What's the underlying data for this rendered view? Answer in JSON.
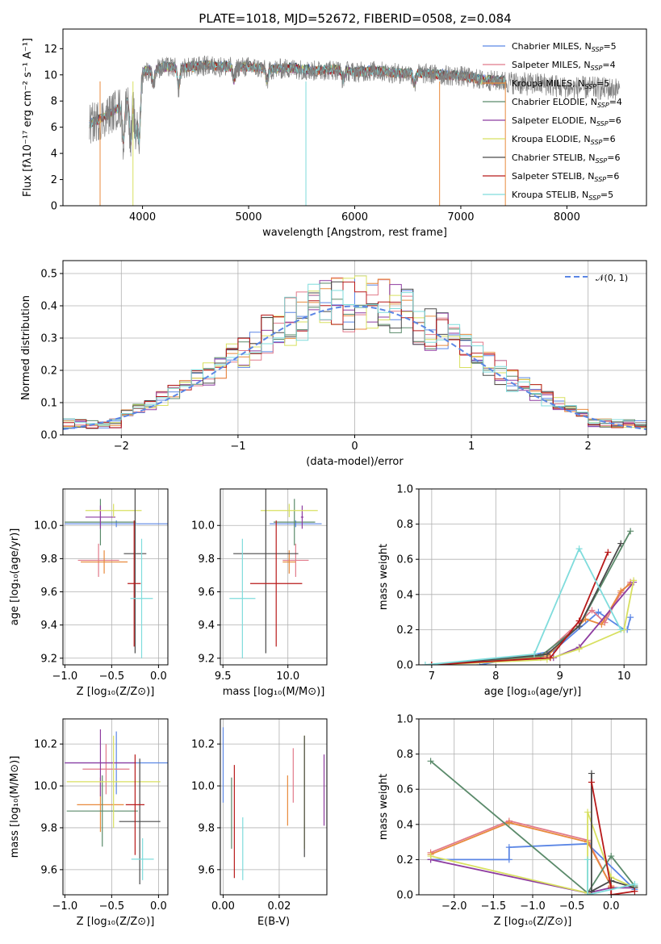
{
  "title": "PLATE=1018, MJD=52672, FIBERID=0508, z=0.084",
  "colors": {
    "Chabrier MILES": "#5b86e5",
    "Salpeter MILES": "#e17a8a",
    "Kroupa MILES": "#e88a3c",
    "Chabrier ELODIE": "#5a8a6a",
    "Salpeter ELODIE": "#8e3ca0",
    "Kroupa ELODIE": "#d8e060",
    "Chabrier STELIB": "#4a4a4a",
    "Salpeter STELIB": "#b81a1a",
    "Kroupa STELIB": "#7fdcdc",
    "data": "#808080",
    "normal": "#5b86e5"
  },
  "chart_data": [
    {
      "type": "line",
      "id": "spectrum",
      "title": "PLATE=1018, MJD=52672, FIBERID=0508, z=0.084",
      "xlabel": "wavelength [Angstrom, rest frame]",
      "ylabel": "Flux [fλ10⁻¹⁷ erg cm⁻² s⁻¹ A⁻¹]",
      "xlim": [
        3250,
        8750
      ],
      "ylim": [
        0,
        13.5
      ],
      "xticks": [
        "4000",
        "5000",
        "6000",
        "7000",
        "8000"
      ],
      "yticks": [
        "0",
        "2",
        "4",
        "6",
        "8",
        "10",
        "12"
      ],
      "legend": [
        {
          "model": "Chabrier MILES",
          "label": "Chabrier MILES, N",
          "nssp": "=5"
        },
        {
          "model": "Salpeter MILES",
          "label": "Salpeter MILES, N",
          "nssp": "=4"
        },
        {
          "model": "Kroupa MILES",
          "label": "Kroupa MILES, N",
          "nssp": "=5"
        },
        {
          "model": "Chabrier ELODIE",
          "label": "Chabrier ELODIE, N",
          "nssp": "=4"
        },
        {
          "model": "Salpeter ELODIE",
          "label": "Salpeter ELODIE, N",
          "nssp": "=6"
        },
        {
          "model": "Kroupa ELODIE",
          "label": "Kroupa ELODIE, N",
          "nssp": "=6"
        },
        {
          "model": "Chabrier STELIB",
          "label": "Chabrier STELIB, N",
          "nssp": "=6"
        },
        {
          "model": "Salpeter STELIB",
          "label": "Salpeter STELIB, N",
          "nssp": "=6"
        },
        {
          "model": "Kroupa STELIB",
          "label": "Kroupa STELIB, N",
          "nssp": "=5"
        }
      ],
      "nssp_sub": "SSP",
      "continuum": [
        [
          3500,
          6.2
        ],
        [
          3650,
          6.8
        ],
        [
          3800,
          7.6
        ],
        [
          3950,
          9.0
        ],
        [
          4000,
          10.2
        ],
        [
          4200,
          10.6
        ],
        [
          4400,
          10.5
        ],
        [
          4600,
          10.7
        ],
        [
          4800,
          10.6
        ],
        [
          5000,
          10.6
        ],
        [
          5200,
          10.4
        ],
        [
          5400,
          10.5
        ],
        [
          5600,
          10.3
        ],
        [
          5800,
          10.4
        ],
        [
          6000,
          10.2
        ],
        [
          6200,
          10.3
        ],
        [
          6400,
          10.1
        ],
        [
          6600,
          10.1
        ],
        [
          6800,
          10.0
        ],
        [
          7000,
          9.9
        ],
        [
          7200,
          9.6
        ],
        [
          7400,
          9.5
        ],
        [
          7600,
          9.3
        ],
        [
          7800,
          9.3
        ],
        [
          8000,
          9.0
        ],
        [
          8200,
          9.0
        ],
        [
          8500,
          8.9
        ]
      ],
      "absorption": [
        [
          3820,
          5.0
        ],
        [
          3889,
          4.8
        ],
        [
          3934,
          5.2
        ],
        [
          3969,
          5.0
        ],
        [
          4102,
          9.3
        ],
        [
          4340,
          9.0
        ],
        [
          4861,
          9.6
        ],
        [
          5175,
          9.6
        ],
        [
          5890,
          9.6
        ],
        [
          6563,
          9.3
        ]
      ]
    },
    {
      "type": "histogram",
      "id": "residuals",
      "xlabel": "(data-model)/error",
      "ylabel": "Normed distribution",
      "xlim": [
        -2.5,
        2.5
      ],
      "ylim": [
        0,
        0.54
      ],
      "xticks": [
        "−2",
        "−1",
        "0",
        "1",
        "2"
      ],
      "yticks": [
        "0.0",
        "0.1",
        "0.2",
        "0.3",
        "0.4",
        "0.5"
      ],
      "legend": "𝒩(0, 1)",
      "bin_width": 0.1,
      "normal_curve": {
        "mean": 0,
        "sigma": 1
      }
    },
    {
      "type": "errorbar",
      "id": "age-vs-Z",
      "xlabel": "Z [log₁₀(Z/Z⊙)]",
      "ylabel": "age  [log₁₀(age/yr)]",
      "xlim": [
        -1.02,
        0.1
      ],
      "ylim": [
        9.16,
        10.22
      ],
      "xticks": [
        "−1.0",
        "−0.5",
        "0.0"
      ],
      "yticks": [
        "9.2",
        "9.4",
        "9.6",
        "9.8",
        "10.0"
      ],
      "points": [
        {
          "model": "Chabrier MILES",
          "x": -0.45,
          "xerr": 0.55,
          "y": 10.01,
          "yerr": 0.02
        },
        {
          "model": "Salpeter MILES",
          "x": -0.64,
          "xerr": 0.22,
          "y": 9.79,
          "yerr": 0.1
        },
        {
          "model": "Kroupa MILES",
          "x": -0.58,
          "xerr": 0.25,
          "y": 9.78,
          "yerr": 0.07
        },
        {
          "model": "Chabrier ELODIE",
          "x": -0.62,
          "xerr": 0.38,
          "y": 10.02,
          "yerr": 0.14
        },
        {
          "model": "Salpeter ELODIE",
          "x": -0.62,
          "xerr": 0.16,
          "y": 10.05,
          "yerr": 0.07
        },
        {
          "model": "Kroupa ELODIE",
          "x": -0.48,
          "xerr": 0.3,
          "y": 10.09,
          "yerr": 0.04
        },
        {
          "model": "Chabrier STELIB",
          "x": -0.25,
          "xerr": 0.12,
          "y": 9.83,
          "yerr": 0.6
        },
        {
          "model": "Salpeter STELIB",
          "x": -0.26,
          "xerr": 0.07,
          "y": 9.65,
          "yerr": 0.38
        },
        {
          "model": "Kroupa STELIB",
          "x": -0.18,
          "xerr": 0.12,
          "y": 9.56,
          "yerr": 0.36
        }
      ]
    },
    {
      "type": "errorbar",
      "id": "age-vs-mass",
      "xlabel": "mass [log₁₀(M/M⊙)]",
      "ylabel": "",
      "xlim": [
        9.48,
        10.3
      ],
      "ylim": [
        9.16,
        10.22
      ],
      "xticks": [
        "9.5",
        "10.0"
      ],
      "yticks": [
        "9.2",
        "9.4",
        "9.6",
        "9.8",
        "10.0"
      ],
      "points": [
        {
          "model": "Chabrier MILES",
          "x": 10.06,
          "xerr": 0.2,
          "y": 10.01,
          "yerr": 0.02
        },
        {
          "model": "Salpeter MILES",
          "x": 10.06,
          "xerr": 0.1,
          "y": 9.79,
          "yerr": 0.1
        },
        {
          "model": "Kroupa MILES",
          "x": 10.01,
          "xerr": 0.05,
          "y": 9.78,
          "yerr": 0.07
        },
        {
          "model": "Chabrier ELODIE",
          "x": 10.05,
          "xerr": 0.16,
          "y": 10.02,
          "yerr": 0.14
        },
        {
          "model": "Salpeter ELODIE",
          "x": 10.11,
          "xerr": 0.01,
          "y": 10.05,
          "yerr": 0.07
        },
        {
          "model": "Kroupa ELODIE",
          "x": 10.01,
          "xerr": 0.22,
          "y": 10.09,
          "yerr": 0.04
        },
        {
          "model": "Chabrier STELIB",
          "x": 9.83,
          "xerr": 0.25,
          "y": 9.83,
          "yerr": 0.6
        },
        {
          "model": "Salpeter STELIB",
          "x": 9.91,
          "xerr": 0.2,
          "y": 9.65,
          "yerr": 0.38
        },
        {
          "model": "Kroupa STELIB",
          "x": 9.65,
          "xerr": 0.1,
          "y": 9.56,
          "yerr": 0.36
        }
      ]
    },
    {
      "type": "line",
      "id": "weight-vs-age",
      "xlabel": "age  [log₁₀(age/yr)]",
      "ylabel": "mass weight",
      "xlim": [
        6.8,
        10.35
      ],
      "ylim": [
        0,
        1.0
      ],
      "xticks": [
        "7",
        "8",
        "9",
        "10"
      ],
      "yticks": [
        "0.0",
        "0.2",
        "0.4",
        "0.6",
        "0.8",
        "1.0"
      ],
      "series": [
        {
          "model": "Chabrier MILES",
          "x": [
            7.75,
            8.9,
            9.6,
            10.0,
            10.05,
            10.1
          ],
          "y": [
            0.0,
            0.08,
            0.3,
            0.2,
            0.2,
            0.27
          ]
        },
        {
          "model": "Salpeter MILES",
          "x": [
            7.0,
            8.7,
            9.5,
            9.7,
            9.95,
            10.1
          ],
          "y": [
            0.0,
            0.04,
            0.31,
            0.24,
            0.41,
            0.47
          ]
        },
        {
          "model": "Kroupa MILES",
          "x": [
            7.0,
            8.8,
            9.4,
            9.65,
            9.95,
            10.1
          ],
          "y": [
            0.0,
            0.05,
            0.26,
            0.23,
            0.42,
            0.46
          ]
        },
        {
          "model": "Chabrier ELODIE",
          "x": [
            7.0,
            8.7,
            9.3,
            10.1
          ],
          "y": [
            0.0,
            0.05,
            0.22,
            0.76
          ]
        },
        {
          "model": "Salpeter ELODIE",
          "x": [
            7.0,
            8.9,
            9.3,
            10.15
          ],
          "y": [
            0.0,
            0.04,
            0.1,
            0.47
          ]
        },
        {
          "model": "Kroupa ELODIE",
          "x": [
            7.0,
            8.8,
            9.3,
            10.0,
            10.15
          ],
          "y": [
            0.0,
            0.03,
            0.09,
            0.2,
            0.48
          ]
        },
        {
          "model": "Chabrier STELIB",
          "x": [
            7.0,
            8.8,
            9.3,
            9.95
          ],
          "y": [
            0.0,
            0.06,
            0.22,
            0.69
          ]
        },
        {
          "model": "Salpeter STELIB",
          "x": [
            7.0,
            8.85,
            9.3,
            9.75
          ],
          "y": [
            0.0,
            0.04,
            0.25,
            0.64
          ]
        },
        {
          "model": "Kroupa STELIB",
          "x": [
            6.9,
            8.6,
            9.3,
            9.95
          ],
          "y": [
            0.0,
            0.06,
            0.66,
            0.2
          ]
        }
      ]
    },
    {
      "type": "errorbar",
      "id": "mass-vs-Z",
      "xlabel": "Z [log₁₀(Z/Z⊙)]",
      "ylabel": "mass [log₁₀(M/M⊙)]",
      "xlim": [
        -1.02,
        0.1
      ],
      "ylim": [
        9.48,
        10.32
      ],
      "xticks": [
        "−1.0",
        "−0.5",
        "0.0"
      ],
      "yticks": [
        "9.6",
        "9.8",
        "10.0",
        "10.2"
      ],
      "points": [
        {
          "model": "Chabrier MILES",
          "x": -0.45,
          "xerr": 0.55,
          "y": 10.11,
          "yerr": 0.15
        },
        {
          "model": "Salpeter MILES",
          "x": -0.56,
          "xerr": 0.25,
          "y": 10.08,
          "yerr": 0.12
        },
        {
          "model": "Kroupa MILES",
          "x": -0.62,
          "xerr": 0.25,
          "y": 9.91,
          "yerr": 0.13
        },
        {
          "model": "Chabrier ELODIE",
          "x": -0.6,
          "xerr": 0.38,
          "y": 9.88,
          "yerr": 0.17
        },
        {
          "model": "Salpeter ELODIE",
          "x": -0.62,
          "xerr": 0.38,
          "y": 10.11,
          "yerr": 0.16
        },
        {
          "model": "Kroupa ELODIE",
          "x": -0.48,
          "xerr": 0.5,
          "y": 10.02,
          "yerr": 0.22
        },
        {
          "model": "Chabrier STELIB",
          "x": -0.2,
          "xerr": 0.22,
          "y": 9.83,
          "yerr": 0.3
        },
        {
          "model": "Salpeter STELIB",
          "x": -0.25,
          "xerr": 0.1,
          "y": 9.91,
          "yerr": 0.24
        },
        {
          "model": "Kroupa STELIB",
          "x": -0.17,
          "xerr": 0.12,
          "y": 9.65,
          "yerr": 0.1
        }
      ]
    },
    {
      "type": "errorbar",
      "id": "mass-vs-ebv",
      "xlabel": "E(B-V)",
      "ylabel": "",
      "xlim": [
        -0.001,
        0.037
      ],
      "ylim": [
        9.48,
        10.32
      ],
      "xticks": [
        "0.00",
        "0.02"
      ],
      "yticks": [
        "9.6",
        "9.8",
        "10.0",
        "10.2"
      ],
      "points": [
        {
          "model": "Chabrier MILES",
          "x": 0.0,
          "y": 10.1,
          "yerr": 0.18
        },
        {
          "model": "Salpeter MILES",
          "x": 0.025,
          "y": 10.05,
          "yerr": 0.13
        },
        {
          "model": "Kroupa MILES",
          "x": 0.023,
          "y": 9.93,
          "yerr": 0.12
        },
        {
          "model": "Chabrier ELODIE",
          "x": 0.003,
          "y": 9.87,
          "yerr": 0.17
        },
        {
          "model": "Salpeter ELODIE",
          "x": 0.036,
          "y": 9.98,
          "yerr": 0.17
        },
        {
          "model": "Kroupa ELODIE",
          "x": 0.029,
          "y": 9.97,
          "yerr": 0.27
        },
        {
          "model": "Chabrier STELIB",
          "x": 0.029,
          "y": 9.95,
          "yerr": 0.29
        },
        {
          "model": "Salpeter STELIB",
          "x": 0.004,
          "y": 9.83,
          "yerr": 0.27
        },
        {
          "model": "Kroupa STELIB",
          "x": 0.007,
          "y": 9.7,
          "yerr": 0.15
        }
      ]
    },
    {
      "type": "line",
      "id": "weight-vs-Z",
      "xlabel": "Z [log₁₀(Z/Z⊙)]",
      "ylabel": "mass weight",
      "xlim": [
        -2.45,
        0.45
      ],
      "ylim": [
        0,
        1.0
      ],
      "xticks": [
        "−2.0",
        "−1.5",
        "−1.0",
        "−0.5",
        "0.0"
      ],
      "yticks": [
        "0.0",
        "0.2",
        "0.4",
        "0.6",
        "0.8",
        "1.0"
      ],
      "series": [
        {
          "model": "Chabrier MILES",
          "x": [
            -2.3,
            -1.3,
            -1.3,
            -0.3,
            0.3
          ],
          "y": [
            0.2,
            0.2,
            0.27,
            0.29,
            0.03
          ]
        },
        {
          "model": "Salpeter MILES",
          "x": [
            -2.3,
            -1.3,
            -0.3,
            0.0,
            0.0
          ],
          "y": [
            0.24,
            0.42,
            0.31,
            0.05,
            0.0
          ]
        },
        {
          "model": "Kroupa MILES",
          "x": [
            -2.3,
            -1.3,
            -0.3,
            0.0
          ],
          "y": [
            0.23,
            0.41,
            0.3,
            0.05
          ]
        },
        {
          "model": "Chabrier ELODIE",
          "x": [
            -2.3,
            -0.3,
            0.0,
            0.3
          ],
          "y": [
            0.76,
            0.01,
            0.22,
            0.05
          ]
        },
        {
          "model": "Salpeter ELODIE",
          "x": [
            -2.3,
            -0.3,
            0.0,
            0.3
          ],
          "y": [
            0.2,
            0.01,
            0.04,
            0.04
          ]
        },
        {
          "model": "Kroupa ELODIE",
          "x": [
            -2.3,
            -0.3,
            -0.3,
            0.0,
            0.3
          ],
          "y": [
            0.22,
            0.01,
            0.47,
            0.1,
            0.04
          ]
        },
        {
          "model": "Chabrier STELIB",
          "x": [
            -0.25,
            -0.25,
            0.0,
            0.3
          ],
          "y": [
            0.69,
            0.02,
            0.08,
            0.04
          ]
        },
        {
          "model": "Salpeter STELIB",
          "x": [
            -0.25,
            0.0,
            0.0,
            0.3
          ],
          "y": [
            0.64,
            0.04,
            0.0,
            0.02
          ]
        },
        {
          "model": "Kroupa STELIB",
          "x": [
            -0.3,
            -0.3,
            0.3
          ],
          "y": [
            0.2,
            0.0,
            0.06
          ]
        }
      ]
    }
  ]
}
